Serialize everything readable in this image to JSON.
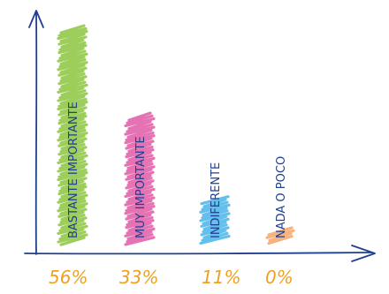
{
  "chart_data": {
    "type": "bar",
    "categories": [
      "BASTANTE IMPORTANTE",
      "MUY IMPORTANTE",
      "INDIFERENTE",
      "NADA O POCO"
    ],
    "values": [
      56,
      33,
      11,
      0
    ],
    "value_labels": [
      "56%",
      "33%",
      "11%",
      "0%"
    ],
    "title": "",
    "xlabel": "",
    "ylabel": "",
    "ylim": [
      0,
      60
    ],
    "grid": false,
    "legend": "none",
    "colors": [
      "#8cc63f",
      "#e05aa6",
      "#48b4e8",
      "#f5a66a"
    ]
  }
}
